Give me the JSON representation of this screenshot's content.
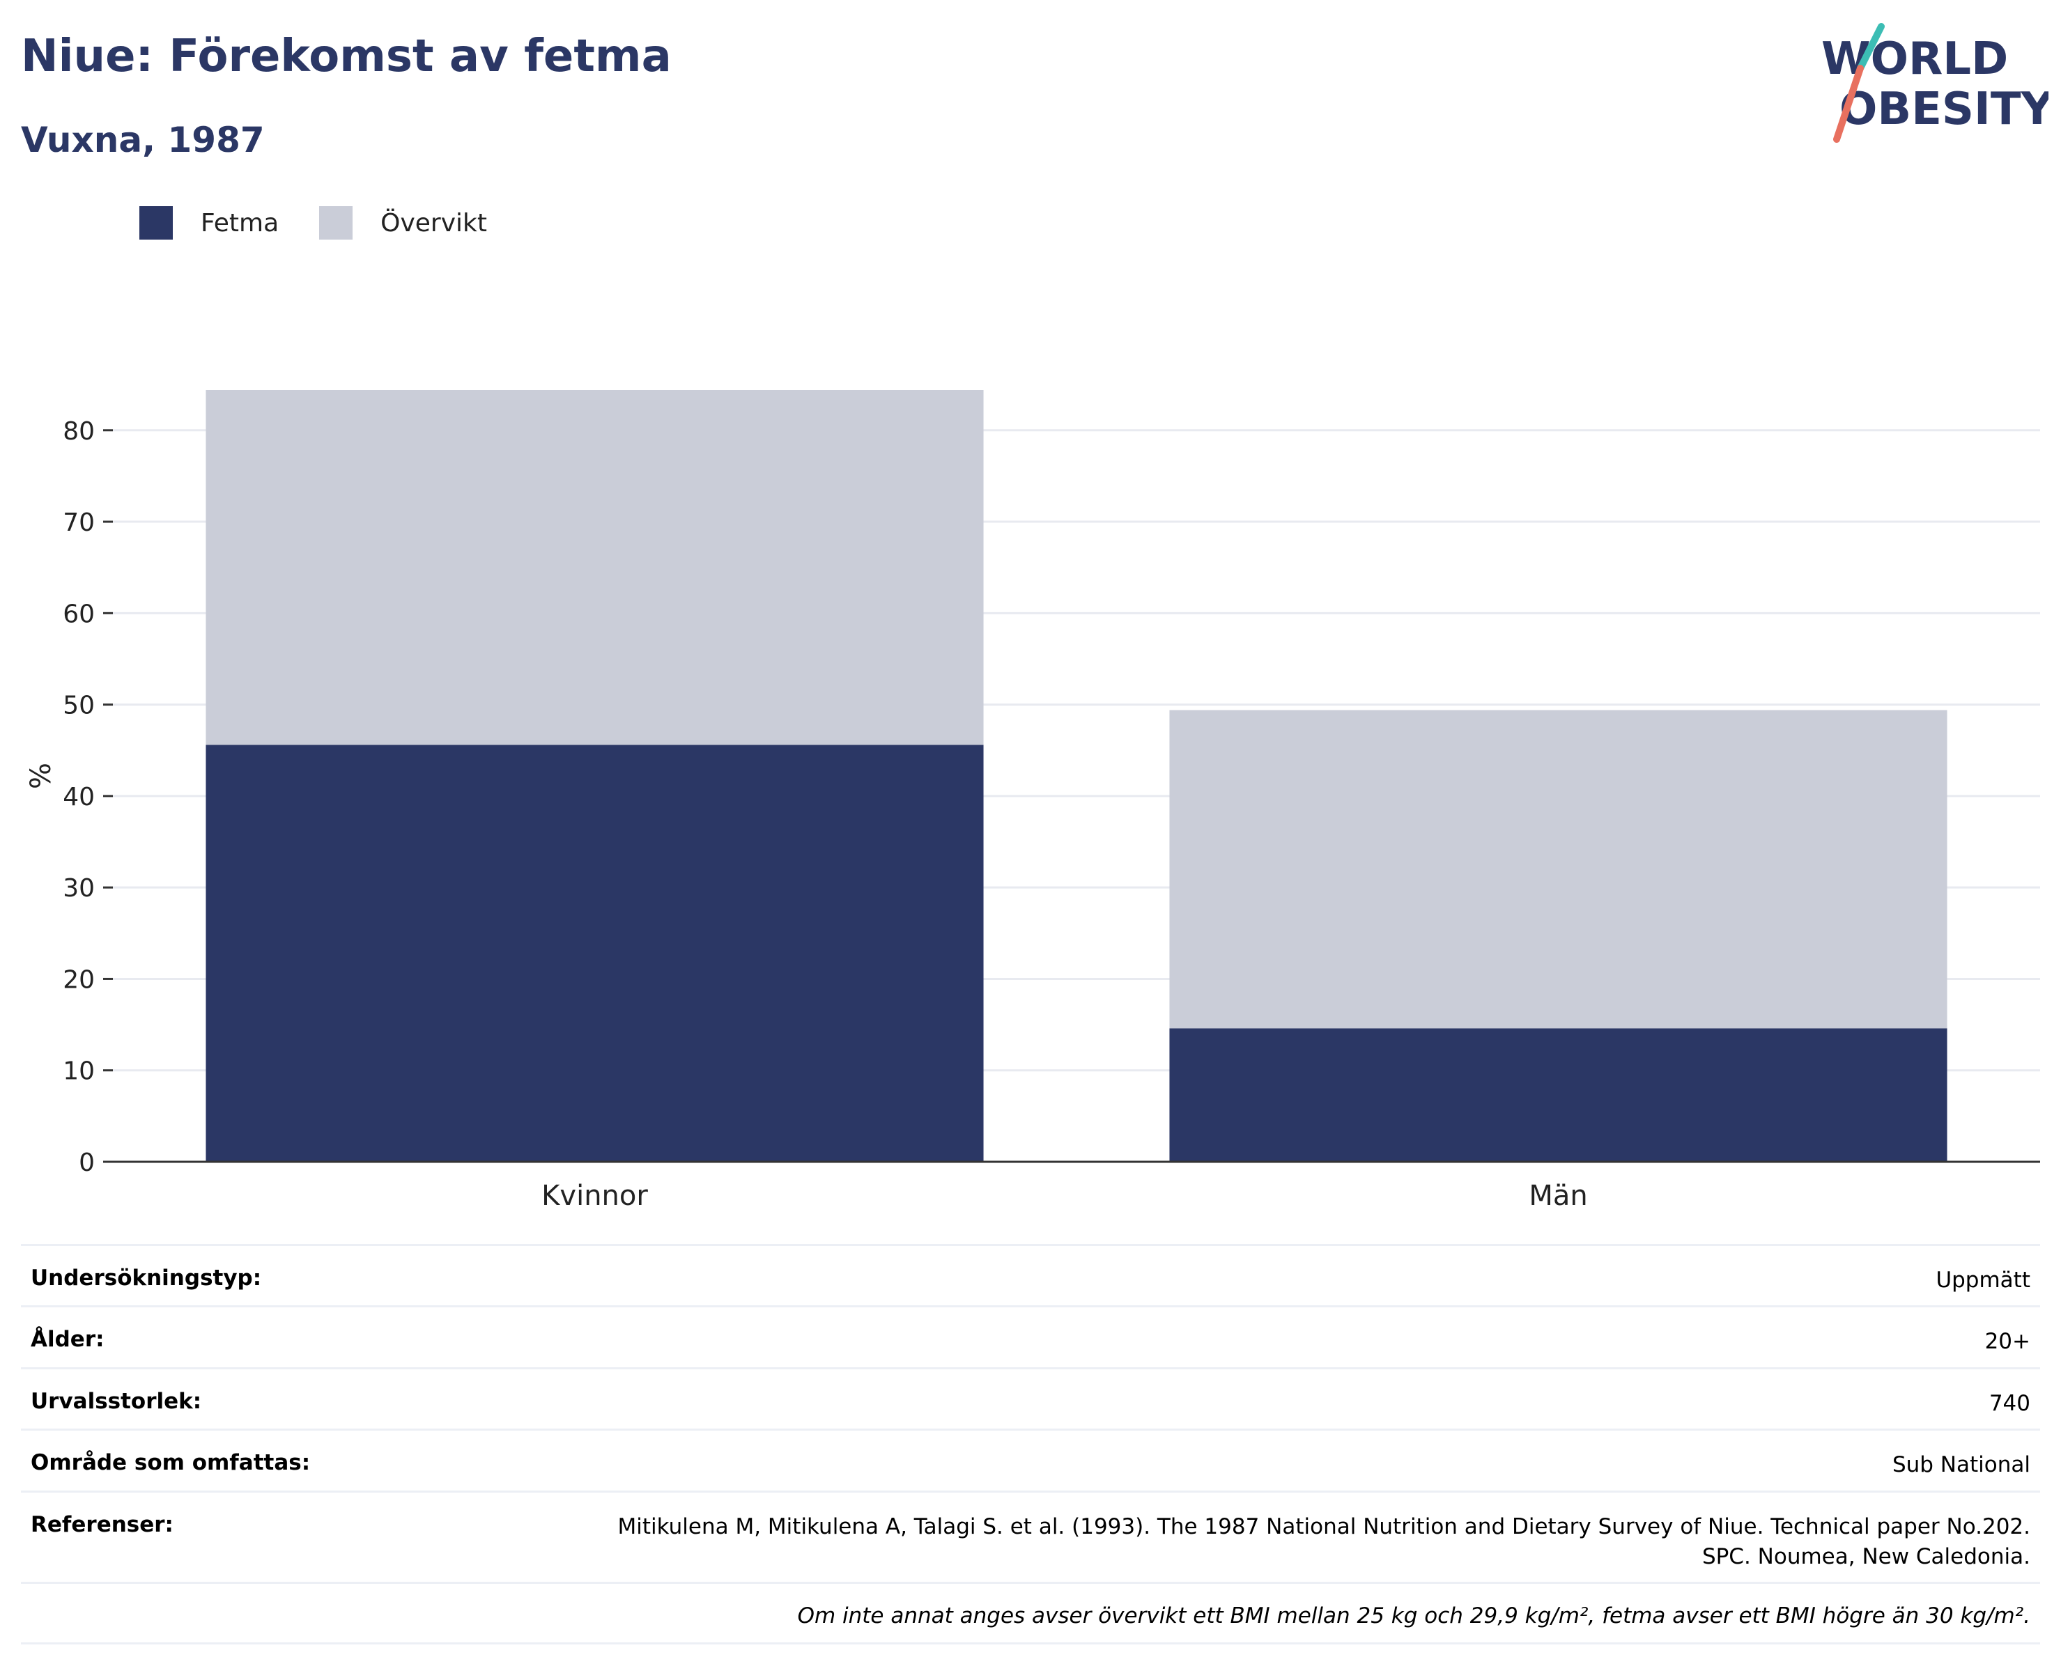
{
  "header": {
    "title": "Niue: Förekomst av fetma",
    "subtitle": "Vuxna, 1987"
  },
  "logo": {
    "line1": "WORLD",
    "line2": "OBESITY",
    "colors": {
      "text": "#2b3765",
      "accent_teal": "#3cbdb4",
      "accent_coral": "#e8705f"
    }
  },
  "legend": [
    {
      "label": "Fetma",
      "color": "#2b3765"
    },
    {
      "label": "Övervikt",
      "color": "#cacdd8"
    }
  ],
  "chart_data": {
    "type": "bar",
    "stacked": true,
    "categories": [
      "Kvinnor",
      "Män"
    ],
    "series": [
      {
        "name": "Fetma",
        "values": [
          45.6,
          14.6
        ],
        "color": "#2b3765"
      },
      {
        "name": "Övervikt",
        "values": [
          38.8,
          34.8
        ],
        "color": "#cacdd8"
      }
    ],
    "ylabel": "%",
    "ylim": [
      0,
      84.4
    ],
    "yticks": [
      0,
      10,
      20,
      30,
      40,
      50,
      60,
      70,
      80
    ],
    "grid": true,
    "legend_position": "top-left"
  },
  "info": {
    "rows": [
      {
        "label": "Undersökningstyp:",
        "value": "Uppmätt"
      },
      {
        "label": "Ålder:",
        "value": "20+"
      },
      {
        "label": "Urvalsstorlek:",
        "value": "740"
      },
      {
        "label": "Område som omfattas:",
        "value": "Sub National"
      }
    ],
    "references": {
      "label": "Referenser:",
      "line1": "Mitikulena M, Mitikulena A, Talagi S. et al. (1993). The 1987 National Nutrition and Dietary Survey of Niue. Technical paper No.202.",
      "line2": "SPC. Noumea, New Caledonia."
    },
    "note": "Om inte annat anges avser övervikt ett BMI mellan 25 kg och 29,9 kg/m², fetma avser ett BMI högre än 30 kg/m²."
  }
}
